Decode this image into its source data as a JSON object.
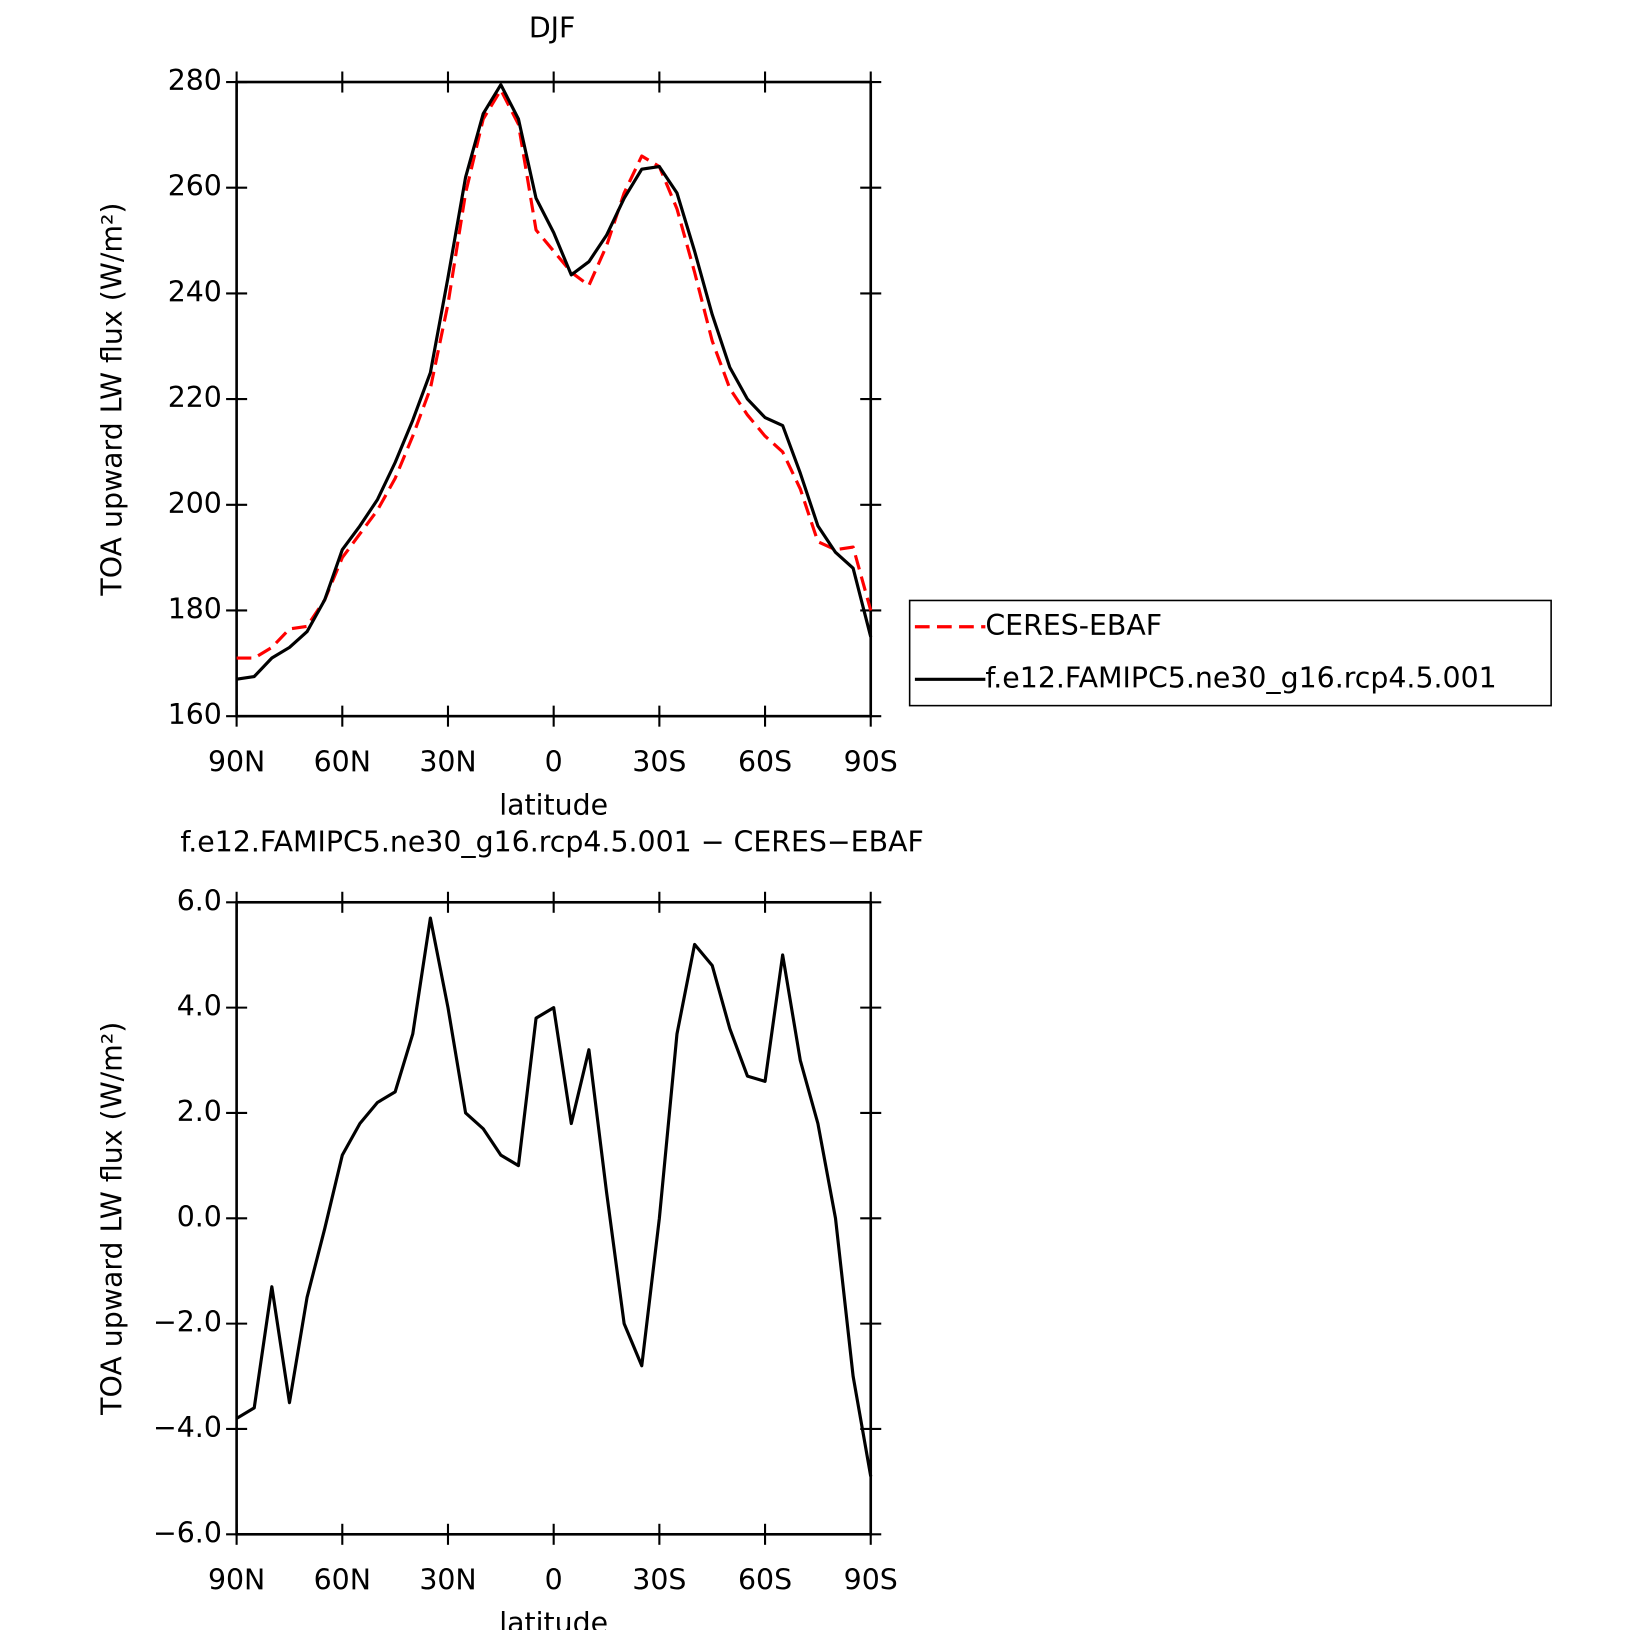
{
  "chart_data": [
    {
      "type": "line",
      "title": "DJF",
      "xlabel": "latitude",
      "ylabel": "TOA upward LW flux (W/m²)",
      "x": [
        90,
        85,
        80,
        75,
        70,
        65,
        60,
        55,
        50,
        45,
        40,
        35,
        30,
        25,
        20,
        15,
        10,
        5,
        0,
        -5,
        -10,
        -15,
        -20,
        -25,
        -30,
        -35,
        -40,
        -45,
        -50,
        -55,
        -60,
        -65,
        -70,
        -75,
        -80,
        -85,
        -90
      ],
      "series": [
        {
          "name": "CERES-EBAF",
          "color": "#ff0000",
          "dash": "dashed",
          "values": [
            171,
            171,
            173,
            176.5,
            177,
            182,
            190,
            194.5,
            199,
            205,
            213,
            222,
            238,
            259,
            273,
            278.5,
            272,
            252,
            248,
            244,
            241.5,
            249,
            259,
            266,
            264,
            256,
            244,
            231,
            222,
            217,
            213,
            210,
            203,
            193,
            191.5,
            192,
            180
          ]
        },
        {
          "name": "f.e12.FAMIPC5.ne30_g16.rcp4.5.001",
          "color": "#000000",
          "dash": "solid",
          "values": [
            167,
            167.5,
            171,
            173,
            176,
            182,
            191.5,
            196,
            201,
            208,
            216,
            225,
            243,
            262,
            274,
            279.5,
            273,
            258,
            251.5,
            243.5,
            246,
            251,
            258,
            263.5,
            264,
            259,
            248,
            236,
            226,
            220,
            216.5,
            215,
            206,
            196,
            191,
            188,
            175
          ]
        }
      ],
      "xlim": [
        90,
        -90
      ],
      "xticks": [
        {
          "value": 90,
          "label": "90N"
        },
        {
          "value": 60,
          "label": "60N"
        },
        {
          "value": 30,
          "label": "30N"
        },
        0,
        {
          "value": -30,
          "label": "30S"
        },
        {
          "value": -60,
          "label": "60S"
        },
        {
          "value": -90,
          "label": "90S"
        }
      ],
      "ylim": [
        160,
        280
      ],
      "yticks": [
        160,
        180,
        200,
        220,
        240,
        260,
        280
      ],
      "legend": "right"
    },
    {
      "type": "line",
      "title": "f.e12.FAMIPC5.ne30_g16.rcp4.5.001 − CERES−EBAF",
      "xlabel": "latitude",
      "ylabel": "TOA upward LW flux (W/m²)",
      "x": [
        90,
        85,
        80,
        75,
        70,
        65,
        60,
        55,
        50,
        45,
        40,
        35,
        30,
        25,
        20,
        15,
        10,
        5,
        0,
        -5,
        -10,
        -15,
        -20,
        -25,
        -30,
        -35,
        -40,
        -45,
        -50,
        -55,
        -60,
        -65,
        -70,
        -75,
        -80,
        -85,
        -90
      ],
      "values": [
        -3.8,
        -3.6,
        -1.3,
        -3.5,
        -1.5,
        -0.2,
        1.2,
        1.8,
        2.2,
        2.4,
        3.5,
        5.7,
        4.0,
        2.0,
        1.7,
        1.2,
        1.0,
        3.8,
        4.0,
        1.8,
        3.2,
        0.5,
        -2.0,
        -2.8,
        0.0,
        3.5,
        5.2,
        4.8,
        3.6,
        2.7,
        2.6,
        5.0,
        3.0,
        1.8,
        0.0,
        -3.0,
        -4.9
      ],
      "color": "#000000",
      "xlim": [
        90,
        -90
      ],
      "xticks": [
        {
          "value": 90,
          "label": "90N"
        },
        {
          "value": 60,
          "label": "60N"
        },
        {
          "value": 30,
          "label": "30N"
        },
        0,
        {
          "value": -30,
          "label": "30S"
        },
        {
          "value": -60,
          "label": "60S"
        },
        {
          "value": -90,
          "label": "90S"
        }
      ],
      "ylim": [
        -6,
        6
      ],
      "yticks": [
        {
          "value": -6,
          "label": "−6.0"
        },
        {
          "value": -4,
          "label": "−4.0"
        },
        {
          "value": -2,
          "label": "−2.0"
        },
        {
          "value": 0,
          "label": "0.0"
        },
        {
          "value": 2,
          "label": "2.0"
        },
        {
          "value": 4,
          "label": "4.0"
        },
        {
          "value": 6,
          "label": "6.0"
        }
      ]
    }
  ]
}
